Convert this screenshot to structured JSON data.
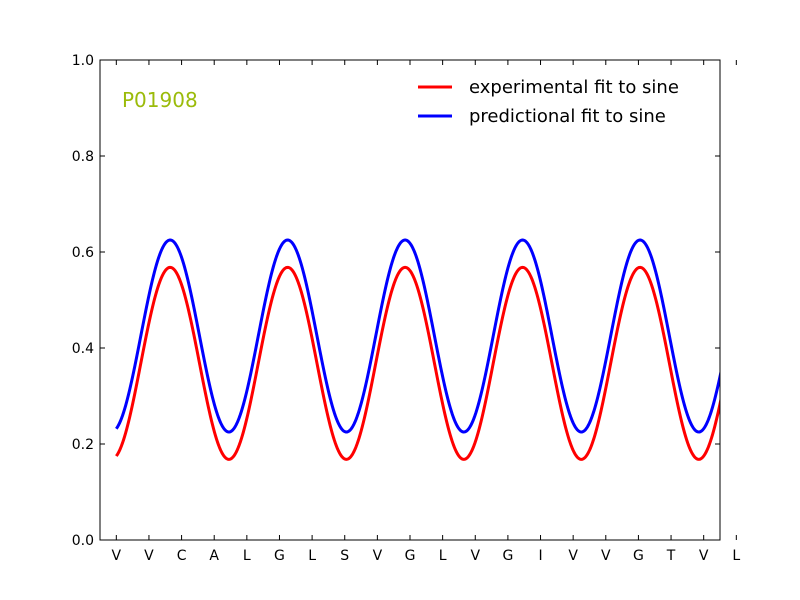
{
  "chart_data": {
    "type": "line",
    "title": "",
    "xlabel": "",
    "ylabel": "",
    "annotation": "P01908",
    "annotation_color": "#9bbb0a",
    "categories": [
      "V",
      "V",
      "C",
      "A",
      "L",
      "G",
      "L",
      "S",
      "V",
      "G",
      "L",
      "V",
      "G",
      "I",
      "V",
      "V",
      "G",
      "T",
      "V",
      "L"
    ],
    "xlim": [
      -0.5,
      18.5
    ],
    "ylim": [
      0.0,
      1.0
    ],
    "yticks": [
      0.0,
      0.2,
      0.4,
      0.6,
      0.8,
      1.0
    ],
    "ytick_labels": [
      "0.0",
      "0.2",
      "0.4",
      "0.6",
      "0.8",
      "1.0"
    ],
    "grid": false,
    "legend_position": "top-right",
    "series": [
      {
        "name": "experimental fit to sine",
        "color": "#ff0000",
        "function": "sine",
        "x_range": [
          0,
          19
        ],
        "midline": 0.368,
        "amplitude": 0.2,
        "period": 3.6,
        "peak_at": 1.65
      },
      {
        "name": "predictional fit to sine",
        "color": "#0000ff",
        "function": "sine",
        "x_range": [
          0,
          19
        ],
        "midline": 0.425,
        "amplitude": 0.2,
        "period": 3.6,
        "peak_at": 1.65
      }
    ]
  }
}
